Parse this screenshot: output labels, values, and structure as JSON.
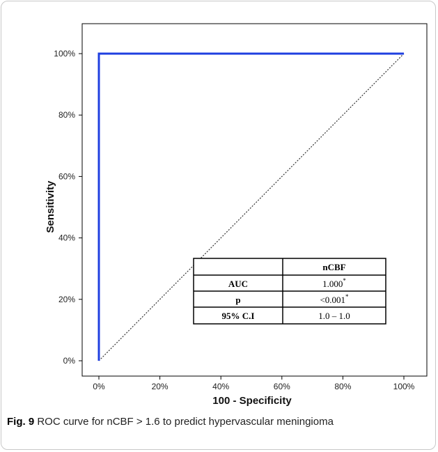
{
  "chart_data": {
    "type": "line",
    "xlabel": "100 - Specificity",
    "ylabel": "Sensitivity",
    "xlim": [
      0,
      100
    ],
    "ylim": [
      0,
      100
    ],
    "x_ticks": [
      "0%",
      "20%",
      "40%",
      "60%",
      "80%",
      "100%"
    ],
    "y_ticks": [
      "0%",
      "20%",
      "40%",
      "60%",
      "80%",
      "100%"
    ],
    "grid": false,
    "series": [
      {
        "x": [
          0,
          0,
          100
        ],
        "y": [
          0,
          100,
          100
        ],
        "color": "#1f3fe0",
        "style": "solid"
      },
      {
        "x": [
          0,
          100
        ],
        "y": [
          0,
          100
        ],
        "color": "#333333",
        "style": "dotted"
      }
    ],
    "table": {
      "header": [
        "",
        "nCBF"
      ],
      "rows": [
        {
          "label": "AUC",
          "value": "1.000",
          "sup": "*"
        },
        {
          "label": "p",
          "value": "<0.001",
          "sup": "*"
        },
        {
          "label": "95% C.I",
          "value": "1.0 – 1.0",
          "sup": ""
        }
      ]
    }
  },
  "caption": {
    "label": "Fig. 9",
    "text": "ROC curve for nCBF > 1.6 to predict hypervascular meningioma"
  }
}
